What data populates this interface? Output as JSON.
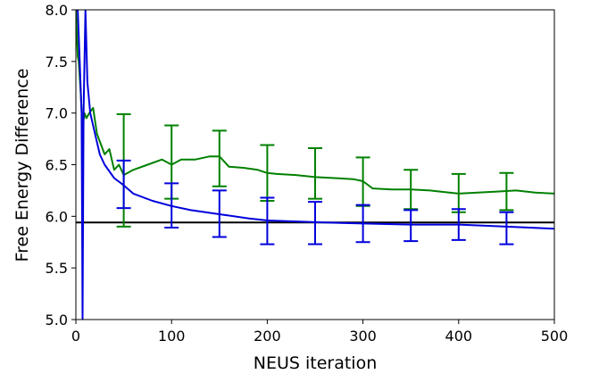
{
  "chart_data": {
    "type": "line",
    "xlabel": "NEUS iteration",
    "ylabel": "Free Energy Difference",
    "xlim": [
      0,
      500
    ],
    "ylim": [
      5.0,
      8.0
    ],
    "xticks": [
      0,
      100,
      200,
      300,
      400,
      500
    ],
    "xtick_labels": [
      "0",
      "100",
      "200",
      "300",
      "400",
      "500"
    ],
    "yticks": [
      5.0,
      5.5,
      6.0,
      6.5,
      7.0,
      7.5,
      8.0
    ],
    "ytick_labels": [
      "5.0",
      "5.5",
      "6.0",
      "6.5",
      "7.0",
      "7.5",
      "8.0"
    ],
    "grid": false,
    "reference_line": {
      "y": 5.94,
      "color": "#000000"
    },
    "series": [
      {
        "color": "#008000",
        "x": [
          0,
          2,
          3,
          5,
          7,
          9,
          11,
          14,
          18,
          22,
          26,
          30,
          35,
          40,
          45,
          50,
          60,
          75,
          90,
          100,
          110,
          125,
          140,
          150,
          160,
          175,
          190,
          200,
          210,
          230,
          250,
          270,
          290,
          300,
          310,
          330,
          350,
          370,
          390,
          400,
          420,
          440,
          460,
          480,
          500
        ],
        "y": [
          8.0,
          7.55,
          7.5,
          7.2,
          6.85,
          7.0,
          6.95,
          7.0,
          7.05,
          6.8,
          6.7,
          6.6,
          6.65,
          6.45,
          6.5,
          6.4,
          6.45,
          6.5,
          6.55,
          6.5,
          6.55,
          6.55,
          6.58,
          6.58,
          6.48,
          6.47,
          6.45,
          6.42,
          6.41,
          6.4,
          6.38,
          6.37,
          6.36,
          6.34,
          6.27,
          6.26,
          6.26,
          6.25,
          6.23,
          6.22,
          6.23,
          6.24,
          6.25,
          6.23,
          6.22
        ]
      },
      {
        "color": "#0000dd",
        "x": [
          0,
          2,
          4,
          6,
          7,
          8,
          10,
          12,
          15,
          20,
          25,
          30,
          40,
          50,
          60,
          80,
          100,
          120,
          150,
          180,
          200,
          230,
          260,
          300,
          350,
          400,
          450,
          500
        ],
        "y": [
          8.0,
          8.0,
          7.5,
          7.0,
          5.0,
          7.0,
          8.0,
          7.3,
          7.0,
          6.8,
          6.6,
          6.5,
          6.37,
          6.3,
          6.22,
          6.15,
          6.1,
          6.06,
          6.02,
          5.98,
          5.96,
          5.95,
          5.94,
          5.93,
          5.92,
          5.92,
          5.9,
          5.88
        ]
      }
    ],
    "error_bars": [
      {
        "color": "#008000",
        "x": [
          50,
          100,
          150,
          200,
          250,
          300,
          350,
          400,
          450
        ],
        "center": [
          6.45,
          6.52,
          6.56,
          6.42,
          6.42,
          6.34,
          6.26,
          6.23,
          6.24
        ],
        "low": [
          5.9,
          6.17,
          6.29,
          6.15,
          6.17,
          6.1,
          6.07,
          6.04,
          6.06
        ],
        "high": [
          6.99,
          6.88,
          6.83,
          6.69,
          6.66,
          6.57,
          6.45,
          6.41,
          6.42
        ]
      },
      {
        "color": "#0000dd",
        "x": [
          50,
          100,
          150,
          200,
          250,
          300,
          350,
          400,
          450
        ],
        "center": [
          6.31,
          6.1,
          6.02,
          5.96,
          5.94,
          5.93,
          5.91,
          5.92,
          5.88
        ],
        "low": [
          6.08,
          5.89,
          5.8,
          5.73,
          5.73,
          5.75,
          5.76,
          5.77,
          5.73
        ],
        "high": [
          6.54,
          6.32,
          6.25,
          6.18,
          6.14,
          6.11,
          6.06,
          6.07,
          6.04
        ]
      }
    ]
  }
}
